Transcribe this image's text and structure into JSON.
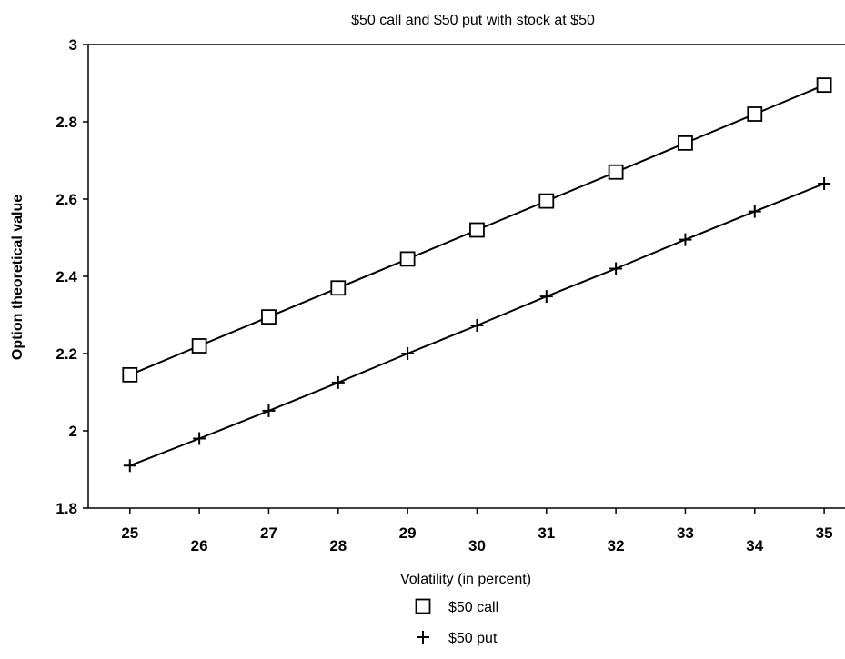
{
  "chart_data": {
    "type": "line",
    "title": "$50 call and $50 put with stock at $50",
    "xlabel": "Volatility (in percent)",
    "ylabel": "Option theoretical value",
    "x": [
      25,
      26,
      27,
      28,
      29,
      30,
      31,
      32,
      33,
      34,
      35
    ],
    "xlim": [
      24.4,
      35.3
    ],
    "ylim": [
      1.8,
      3.0
    ],
    "yticks": [
      1.8,
      2,
      2.2,
      2.4,
      2.6,
      2.8,
      3
    ],
    "ytick_labels": [
      "1.8",
      "2",
      "2.2",
      "2.4",
      "2.6",
      "2.8",
      "3"
    ],
    "xtick_labels": [
      "25",
      "26",
      "27",
      "28",
      "29",
      "30",
      "31",
      "32",
      "33",
      "34",
      "35"
    ],
    "grid": false,
    "legend_position": "bottom-center",
    "series": [
      {
        "name": "$50 call",
        "marker": "square",
        "values": [
          2.145,
          2.22,
          2.295,
          2.37,
          2.445,
          2.52,
          2.595,
          2.67,
          2.745,
          2.82,
          2.895
        ]
      },
      {
        "name": "$50 put",
        "marker": "plus",
        "values": [
          1.91,
          1.98,
          2.052,
          2.125,
          2.2,
          2.273,
          2.348,
          2.42,
          2.495,
          2.568,
          2.64
        ]
      }
    ]
  }
}
